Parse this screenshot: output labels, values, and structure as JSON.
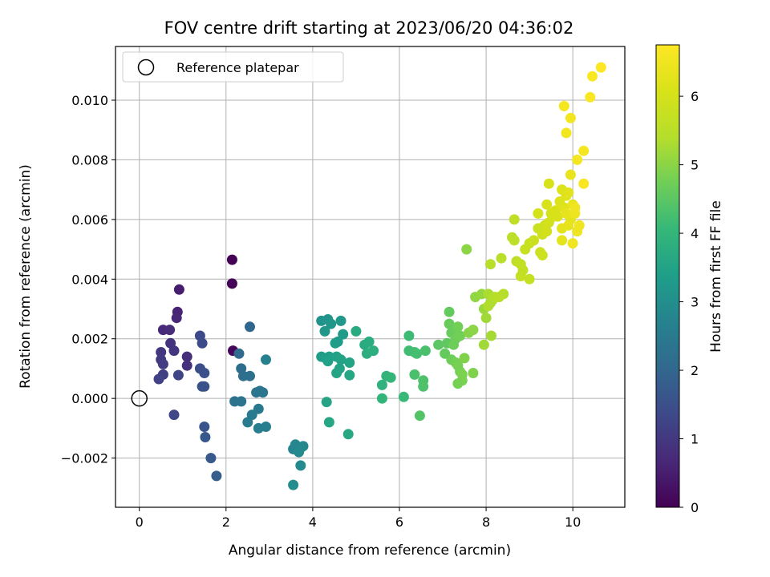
{
  "chart_data": {
    "type": "scatter",
    "title": "FOV centre drift starting at 2023/06/20 04:36:02",
    "xlabel": "Angular distance from reference (arcmin)",
    "ylabel": "Rotation from reference (arcmin)",
    "xlim": [
      -0.55,
      11.2
    ],
    "ylim": [
      -0.00365,
      0.0118
    ],
    "xticks": [
      0,
      2,
      4,
      6,
      8,
      10
    ],
    "xtick_labels": [
      "0",
      "2",
      "4",
      "6",
      "8",
      "10"
    ],
    "yticks": [
      -0.002,
      0.0,
      0.002,
      0.004,
      0.006,
      0.008,
      0.01
    ],
    "ytick_labels": [
      "−0.002",
      "0.000",
      "0.002",
      "0.004",
      "0.006",
      "0.008",
      "0.010"
    ],
    "grid": true,
    "legend": {
      "position": "upper-left",
      "entries": [
        "Reference platepar"
      ]
    },
    "reference_point": {
      "x": 0.0,
      "y": 0.0,
      "marker": "hollow-circle"
    },
    "colorbar": {
      "label": "Hours from first FF file",
      "colormap": "viridis",
      "range": [
        0,
        6.75
      ],
      "ticks": [
        0,
        1,
        2,
        3,
        4,
        5,
        6
      ],
      "tick_labels": [
        "0",
        "1",
        "2",
        "3",
        "4",
        "5",
        "6"
      ]
    },
    "points": [
      [
        2.14,
        0.00465,
        0.02
      ],
      [
        2.14,
        0.00385,
        0.05
      ],
      [
        2.16,
        0.0016,
        0.1
      ],
      [
        0.92,
        0.00365,
        0.5
      ],
      [
        0.88,
        0.0029,
        0.6
      ],
      [
        0.86,
        0.0027,
        0.65
      ],
      [
        0.55,
        0.0023,
        0.7
      ],
      [
        0.7,
        0.0023,
        0.75
      ],
      [
        1.1,
        0.0014,
        0.8
      ],
      [
        1.1,
        0.0011,
        0.85
      ],
      [
        0.72,
        0.00185,
        0.9
      ],
      [
        0.8,
        0.0016,
        0.95
      ],
      [
        0.5,
        0.00155,
        1.0
      ],
      [
        0.5,
        0.0013,
        1.05
      ],
      [
        0.55,
        0.00115,
        1.1
      ],
      [
        0.55,
        0.0008,
        1.15
      ],
      [
        0.45,
        0.00065,
        1.2
      ],
      [
        0.9,
        0.00078,
        1.25
      ],
      [
        0.8,
        -0.00055,
        1.3
      ],
      [
        1.4,
        0.0021,
        1.35
      ],
      [
        1.45,
        0.00185,
        1.4
      ],
      [
        1.4,
        0.001,
        1.45
      ],
      [
        1.5,
        0.00085,
        1.5
      ],
      [
        1.45,
        0.0004,
        1.55
      ],
      [
        1.5,
        0.0004,
        1.55
      ],
      [
        1.5,
        -0.00095,
        1.6
      ],
      [
        1.52,
        -0.0013,
        1.65
      ],
      [
        1.65,
        -0.002,
        1.7
      ],
      [
        1.78,
        -0.0026,
        1.8
      ],
      [
        2.55,
        0.0024,
        2.0
      ],
      [
        2.3,
        0.0015,
        2.1
      ],
      [
        2.35,
        0.001,
        2.15
      ],
      [
        2.4,
        0.00075,
        2.2
      ],
      [
        2.55,
        0.00075,
        2.2
      ],
      [
        2.2,
        -0.0001,
        2.25
      ],
      [
        2.35,
        -0.0001,
        2.3
      ],
      [
        2.7,
        0.0002,
        2.35
      ],
      [
        2.78,
        0.00025,
        2.35
      ],
      [
        2.85,
        0.0002,
        2.4
      ],
      [
        2.75,
        -0.00035,
        2.45
      ],
      [
        2.6,
        -0.00055,
        2.5
      ],
      [
        2.5,
        -0.0008,
        2.55
      ],
      [
        2.75,
        -0.001,
        2.6
      ],
      [
        2.92,
        -0.00095,
        2.6
      ],
      [
        2.92,
        0.0013,
        2.65
      ],
      [
        3.55,
        -0.0017,
        2.75
      ],
      [
        3.6,
        -0.00155,
        2.8
      ],
      [
        3.7,
        -0.0017,
        2.8
      ],
      [
        3.78,
        -0.0016,
        2.85
      ],
      [
        3.68,
        -0.0018,
        2.9
      ],
      [
        3.72,
        -0.00225,
        2.9
      ],
      [
        3.55,
        -0.0029,
        2.95
      ],
      [
        4.2,
        0.0026,
        3.1
      ],
      [
        4.35,
        0.00265,
        3.15
      ],
      [
        4.42,
        0.0025,
        3.2
      ],
      [
        4.28,
        0.00225,
        3.2
      ],
      [
        4.65,
        0.0026,
        3.25
      ],
      [
        4.7,
        0.00215,
        3.3
      ],
      [
        4.58,
        0.0019,
        3.3
      ],
      [
        4.52,
        0.00185,
        3.35
      ],
      [
        4.2,
        0.0014,
        3.35
      ],
      [
        4.3,
        0.00135,
        3.4
      ],
      [
        4.38,
        0.0014,
        3.4
      ],
      [
        4.35,
        0.00125,
        3.45
      ],
      [
        4.55,
        0.0014,
        3.45
      ],
      [
        4.65,
        0.0013,
        3.5
      ],
      [
        4.62,
        0.001,
        3.5
      ],
      [
        4.55,
        0.00085,
        3.55
      ],
      [
        4.85,
        0.0012,
        3.55
      ],
      [
        4.85,
        0.00078,
        3.6
      ],
      [
        4.32,
        -0.00012,
        3.55
      ],
      [
        4.38,
        -0.0008,
        3.6
      ],
      [
        4.82,
        -0.0012,
        3.65
      ],
      [
        5.0,
        0.00225,
        3.7
      ],
      [
        5.2,
        0.0018,
        3.7
      ],
      [
        5.3,
        0.0019,
        3.75
      ],
      [
        5.4,
        0.0016,
        3.8
      ],
      [
        5.25,
        0.0015,
        3.8
      ],
      [
        5.6,
        0.00045,
        3.9
      ],
      [
        5.7,
        0.00075,
        3.95
      ],
      [
        5.8,
        0.0007,
        4.0
      ],
      [
        5.6,
        0.0,
        4.0
      ],
      [
        6.1,
        5e-05,
        4.1
      ],
      [
        6.22,
        0.0021,
        4.15
      ],
      [
        6.22,
        0.0016,
        4.2
      ],
      [
        6.35,
        0.00155,
        4.2
      ],
      [
        6.4,
        0.0015,
        4.25
      ],
      [
        6.6,
        0.0016,
        4.3
      ],
      [
        6.35,
        0.0008,
        4.3
      ],
      [
        6.55,
        0.0006,
        4.35
      ],
      [
        6.55,
        0.0004,
        4.35
      ],
      [
        6.47,
        -0.00058,
        4.4
      ],
      [
        6.9,
        0.0018,
        4.5
      ],
      [
        7.1,
        0.00185,
        4.55
      ],
      [
        7.05,
        0.0015,
        4.6
      ],
      [
        7.15,
        0.0029,
        4.6
      ],
      [
        7.15,
        0.0025,
        4.65
      ],
      [
        7.2,
        0.0022,
        4.65
      ],
      [
        7.25,
        0.0018,
        4.7
      ],
      [
        7.3,
        0.002,
        4.7
      ],
      [
        7.35,
        0.0024,
        4.75
      ],
      [
        7.4,
        0.0021,
        4.75
      ],
      [
        7.2,
        0.0013,
        4.7
      ],
      [
        7.3,
        0.0012,
        4.75
      ],
      [
        7.35,
        0.0011,
        4.8
      ],
      [
        7.4,
        0.0009,
        4.8
      ],
      [
        7.45,
        0.0008,
        4.85
      ],
      [
        7.45,
        0.0006,
        4.85
      ],
      [
        7.35,
        0.0005,
        4.8
      ],
      [
        7.7,
        0.00085,
        4.9
      ],
      [
        7.5,
        0.00135,
        4.9
      ],
      [
        7.6,
        0.0022,
        4.95
      ],
      [
        7.7,
        0.0023,
        5.0
      ],
      [
        7.55,
        0.005,
        5.0
      ],
      [
        7.75,
        0.0034,
        5.05
      ],
      [
        7.9,
        0.0035,
        5.1
      ],
      [
        7.95,
        0.003,
        5.15
      ],
      [
        8.0,
        0.0027,
        5.2
      ],
      [
        7.95,
        0.0018,
        5.2
      ],
      [
        8.12,
        0.0021,
        5.25
      ],
      [
        8.05,
        0.0035,
        5.3
      ],
      [
        8.1,
        0.0032,
        5.3
      ],
      [
        8.05,
        0.0031,
        5.35
      ],
      [
        8.15,
        0.0033,
        5.35
      ],
      [
        8.2,
        0.0034,
        5.4
      ],
      [
        8.4,
        0.0035,
        5.4
      ],
      [
        8.3,
        0.0034,
        5.45
      ],
      [
        8.1,
        0.0045,
        5.45
      ],
      [
        8.35,
        0.0047,
        5.5
      ],
      [
        8.6,
        0.0054,
        5.5
      ],
      [
        8.65,
        0.0053,
        5.55
      ],
      [
        8.65,
        0.006,
        5.6
      ],
      [
        8.7,
        0.0046,
        5.6
      ],
      [
        8.8,
        0.0045,
        5.65
      ],
      [
        8.85,
        0.0043,
        5.65
      ],
      [
        8.8,
        0.0041,
        5.7
      ],
      [
        9.0,
        0.004,
        5.7
      ],
      [
        8.9,
        0.005,
        5.75
      ],
      [
        9.0,
        0.0052,
        5.75
      ],
      [
        9.1,
        0.0053,
        5.8
      ],
      [
        9.2,
        0.0057,
        5.8
      ],
      [
        9.25,
        0.0049,
        5.85
      ],
      [
        9.3,
        0.0048,
        5.85
      ],
      [
        9.3,
        0.0055,
        5.9
      ],
      [
        9.35,
        0.0058,
        5.9
      ],
      [
        9.4,
        0.0056,
        5.95
      ],
      [
        9.45,
        0.0059,
        5.95
      ],
      [
        9.5,
        0.0062,
        6.0
      ],
      [
        9.55,
        0.0061,
        6.0
      ],
      [
        9.2,
        0.0062,
        6.0
      ],
      [
        9.4,
        0.0065,
        6.05
      ],
      [
        9.45,
        0.0072,
        6.05
      ],
      [
        9.6,
        0.0063,
        6.1
      ],
      [
        9.65,
        0.0061,
        6.1
      ],
      [
        9.7,
        0.0066,
        6.15
      ],
      [
        9.75,
        0.007,
        6.15
      ],
      [
        9.8,
        0.0064,
        6.2
      ],
      [
        9.85,
        0.0068,
        6.2
      ],
      [
        9.9,
        0.0069,
        6.25
      ],
      [
        9.95,
        0.006,
        6.25
      ],
      [
        9.75,
        0.0057,
        6.3
      ],
      [
        9.75,
        0.0053,
        6.3
      ],
      [
        9.85,
        0.0062,
        6.35
      ],
      [
        9.9,
        0.0058,
        6.35
      ],
      [
        9.95,
        0.0075,
        6.4
      ],
      [
        10.0,
        0.0065,
        6.4
      ],
      [
        10.05,
        0.0062,
        6.45
      ],
      [
        10.1,
        0.0056,
        6.45
      ],
      [
        10.15,
        0.0058,
        6.5
      ],
      [
        10.0,
        0.0052,
        6.5
      ],
      [
        10.05,
        0.0064,
        6.5
      ],
      [
        9.85,
        0.0089,
        6.55
      ],
      [
        9.95,
        0.0094,
        6.55
      ],
      [
        9.8,
        0.0098,
        6.6
      ],
      [
        10.1,
        0.008,
        6.6
      ],
      [
        10.25,
        0.0083,
        6.6
      ],
      [
        10.25,
        0.0072,
        6.65
      ],
      [
        10.4,
        0.0101,
        6.7
      ],
      [
        10.45,
        0.0108,
        6.7
      ],
      [
        10.65,
        0.0111,
        6.75
      ]
    ]
  }
}
